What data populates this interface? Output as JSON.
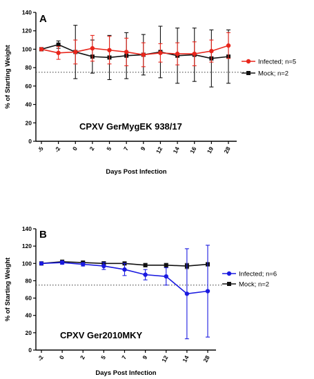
{
  "chart_data": [
    {
      "type": "line",
      "panel": "A",
      "annotation": "CPXV GerMygEK 938/17",
      "xlabel": "Days Post Infection",
      "ylabel": "% of Starting Weight",
      "categories": [
        "-5",
        "-2",
        "0",
        "2",
        "5",
        "7",
        "9",
        "12",
        "14",
        "16",
        "19",
        "28"
      ],
      "ylim": [
        0,
        140
      ],
      "yticks": [
        "0",
        "20",
        "40",
        "60",
        "80",
        "100",
        "120",
        "140"
      ],
      "threshold": 75,
      "legend_position": "right",
      "series": [
        {
          "name": "Infected; n=5",
          "color": "#e8261c",
          "marker": "circle",
          "values": [
            100,
            96,
            97,
            101,
            99,
            97,
            94,
            96,
            95,
            95,
            98,
            104
          ],
          "err": [
            0,
            7,
            13,
            14,
            15,
            15,
            13,
            10,
            12,
            13,
            12,
            14
          ]
        },
        {
          "name": "Mock; n=2",
          "color": "#111111",
          "marker": "square",
          "values": [
            100,
            105,
            97,
            92,
            91,
            93,
            94,
            97,
            93,
            94,
            90,
            92
          ],
          "err": [
            0,
            4,
            29,
            18,
            24,
            25,
            22,
            28,
            30,
            29,
            31,
            29
          ]
        }
      ]
    },
    {
      "type": "line",
      "panel": "B",
      "annotation": "CPXV Ger2010MKY",
      "xlabel": "Days Post Infection",
      "ylabel": "% of Starting Weight",
      "categories": [
        "-2",
        "0",
        "2",
        "5",
        "7",
        "9",
        "12",
        "14",
        "28"
      ],
      "ylim": [
        0,
        140
      ],
      "yticks": [
        "0",
        "20",
        "40",
        "60",
        "80",
        "100",
        "120",
        "140"
      ],
      "threshold": 75,
      "legend_position": "right",
      "series": [
        {
          "name": "Infected; n=6",
          "color": "#1a1ae0",
          "marker": "circle",
          "values": [
            100,
            101,
            99,
            97,
            93,
            87,
            85,
            65,
            68
          ],
          "err": [
            1,
            2,
            2,
            4,
            7,
            6,
            10,
            52,
            53
          ]
        },
        {
          "name": "Mock; n=2",
          "color": "#111111",
          "marker": "square",
          "values": [
            100,
            102,
            101,
            100,
            100,
            98,
            98,
            97,
            99
          ],
          "err": [
            1,
            1,
            1,
            2,
            1,
            2,
            2,
            3,
            2
          ]
        }
      ]
    }
  ]
}
